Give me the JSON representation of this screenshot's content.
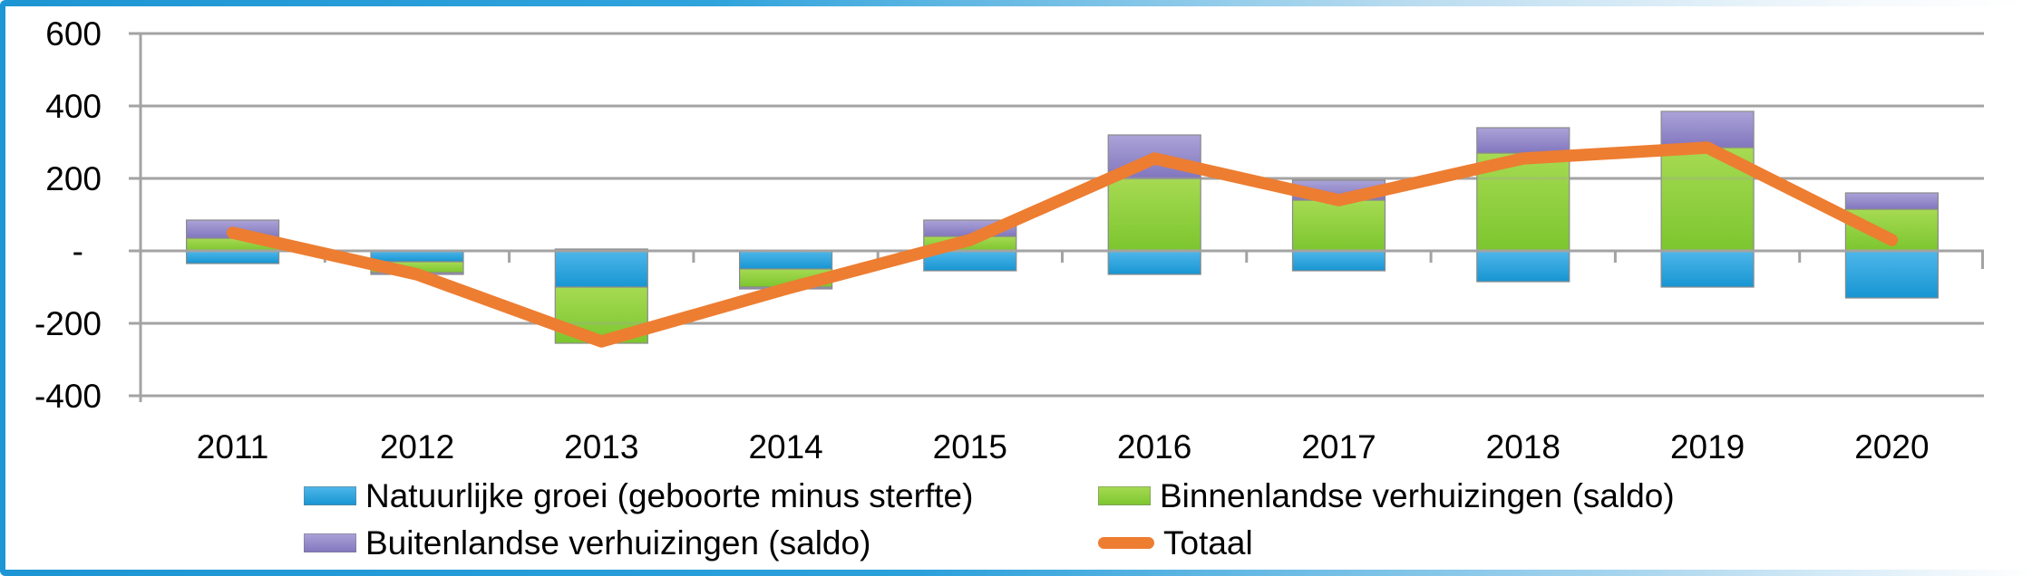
{
  "frame": {
    "accent_color": "#1E95D4"
  },
  "chart_data": {
    "type": "stacked-bar-with-line",
    "title": "",
    "xlabel": "",
    "ylabel": "",
    "categories": [
      "2011",
      "2012",
      "2013",
      "2014",
      "2015",
      "2016",
      "2017",
      "2018",
      "2019",
      "2020"
    ],
    "series": [
      {
        "name": "Natuurlijke groei (geboorte minus sterfte)",
        "type": "bar",
        "color_top": "#4FB7EA",
        "color_bottom": "#1795D2",
        "values": [
          -35,
          -30,
          -100,
          -50,
          -55,
          -65,
          -55,
          -85,
          -100,
          -130
        ]
      },
      {
        "name": "Binnenlandse verhuizingen (saldo)",
        "type": "bar",
        "color_top": "#A6DA52",
        "color_bottom": "#7CC62F",
        "values": [
          35,
          -30,
          -155,
          -50,
          40,
          200,
          140,
          270,
          285,
          115
        ]
      },
      {
        "name": "Buitenlandse verhuizingen (saldo)",
        "type": "bar",
        "color_top": "#ABA3D8",
        "color_bottom": "#8176BE",
        "values": [
          50,
          -5,
          5,
          -5,
          45,
          120,
          55,
          70,
          100,
          45
        ]
      },
      {
        "name": "Totaal",
        "type": "line",
        "color": "#ED7D31",
        "values": [
          50,
          -65,
          -250,
          -105,
          30,
          255,
          140,
          255,
          285,
          30
        ]
      }
    ],
    "yticks": [
      {
        "value": 600,
        "label": "600"
      },
      {
        "value": 400,
        "label": "400"
      },
      {
        "value": 200,
        "label": "200"
      },
      {
        "value": 0,
        "label": "-"
      },
      {
        "value": -200,
        "label": "-200"
      },
      {
        "value": -400,
        "label": "-400"
      }
    ],
    "ylim": [
      -400,
      600
    ],
    "grid": true,
    "legend_position": "bottom",
    "gridline_color": "#A3A3A3"
  }
}
